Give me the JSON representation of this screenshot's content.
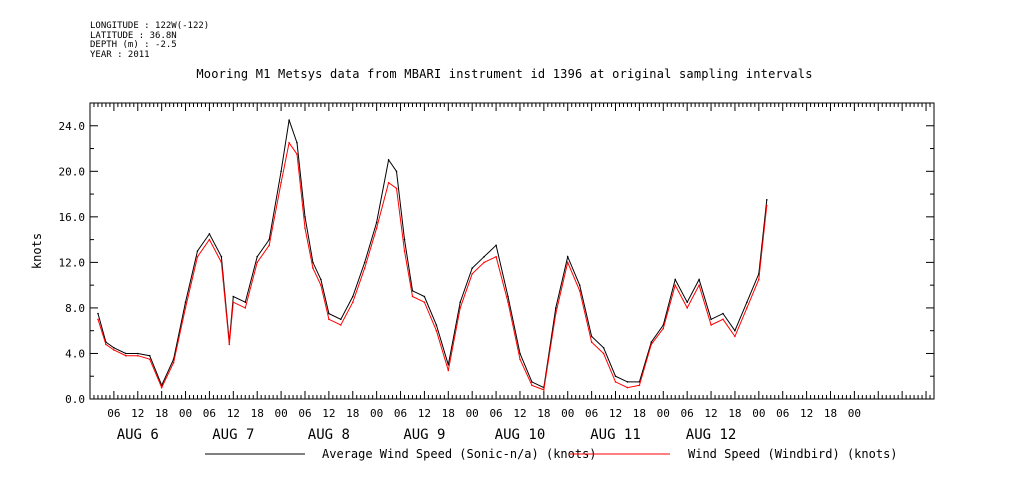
{
  "header": {
    "longitude": "LONGITUDE : 122W(-122)",
    "latitude": "LATITUDE : 36.8N",
    "depth": "DEPTH (m) : -2.5",
    "year": "YEAR : 2011"
  },
  "chart_data": {
    "type": "line",
    "title": "Mooring M1 Metsys data from MBARI instrument id 1396 at original sampling intervals",
    "xlabel": "",
    "ylabel": "knots",
    "ylim": [
      0,
      26
    ],
    "yticks": [
      0.0,
      4.0,
      8.0,
      12.0,
      16.0,
      20.0,
      24.0
    ],
    "ytick_labels": [
      "0.0",
      "4.0",
      "8.0",
      "12.0",
      "16.0",
      "20.0",
      "24.0"
    ],
    "xlim_hours": [
      0,
      212
    ],
    "x_hour_labels": [
      "06",
      "12",
      "18",
      "00",
      "06",
      "12",
      "18",
      "00",
      "06",
      "12",
      "18",
      "00",
      "06",
      "12",
      "18",
      "00",
      "06",
      "12",
      "18",
      "00",
      "06",
      "12",
      "18",
      "00",
      "06",
      "12",
      "18",
      "00",
      "06",
      "12",
      "18",
      "00"
    ],
    "x_day_labels": [
      "AUG  6",
      "AUG  7",
      "AUG  8",
      "AUG  9",
      "AUG 10",
      "AUG 11",
      "AUG 12"
    ],
    "x": [
      "2011-08-06 02:00",
      "2011-08-06 04:00",
      "2011-08-06 06:00",
      "2011-08-06 09:00",
      "2011-08-06 12:00",
      "2011-08-06 15:00",
      "2011-08-06 18:00",
      "2011-08-06 21:00",
      "2011-08-07 00:00",
      "2011-08-07 03:00",
      "2011-08-07 06:00",
      "2011-08-07 09:00",
      "2011-08-07 11:00",
      "2011-08-07 12:00",
      "2011-08-07 15:00",
      "2011-08-07 18:00",
      "2011-08-07 21:00",
      "2011-08-08 00:00",
      "2011-08-08 02:00",
      "2011-08-08 04:00",
      "2011-08-08 06:00",
      "2011-08-08 08:00",
      "2011-08-08 10:00",
      "2011-08-08 12:00",
      "2011-08-08 15:00",
      "2011-08-08 18:00",
      "2011-08-08 21:00",
      "2011-08-09 00:00",
      "2011-08-09 03:00",
      "2011-08-09 05:00",
      "2011-08-09 07:00",
      "2011-08-09 09:00",
      "2011-08-09 12:00",
      "2011-08-09 15:00",
      "2011-08-09 18:00",
      "2011-08-09 21:00",
      "2011-08-10 00:00",
      "2011-08-10 03:00",
      "2011-08-10 06:00",
      "2011-08-10 09:00",
      "2011-08-10 12:00",
      "2011-08-10 15:00",
      "2011-08-10 18:00",
      "2011-08-10 21:00",
      "2011-08-11 00:00",
      "2011-08-11 03:00",
      "2011-08-11 06:00",
      "2011-08-11 09:00",
      "2011-08-11 12:00",
      "2011-08-11 15:00",
      "2011-08-11 18:00",
      "2011-08-11 21:00",
      "2011-08-12 00:00",
      "2011-08-12 03:00",
      "2011-08-12 06:00",
      "2011-08-12 09:00",
      "2011-08-12 12:00",
      "2011-08-12 15:00",
      "2011-08-12 18:00",
      "2011-08-12 21:00",
      "2011-08-13 00:00",
      "2011-08-13 02:00"
    ],
    "series": [
      {
        "name": "Average Wind Speed (Sonic-n/a) (knots)",
        "color": "#000000",
        "values": [
          7.5,
          5.0,
          4.5,
          4.0,
          4.0,
          3.8,
          1.2,
          3.5,
          8.5,
          13.0,
          14.5,
          12.5,
          5.0,
          9.0,
          8.5,
          12.5,
          14.0,
          20.0,
          24.5,
          22.5,
          16.0,
          12.0,
          10.5,
          7.5,
          7.0,
          9.0,
          12.0,
          15.5,
          21.0,
          20.0,
          14.0,
          9.5,
          9.0,
          6.5,
          3.0,
          8.5,
          11.5,
          12.5,
          13.5,
          9.0,
          4.0,
          1.5,
          1.0,
          8.0,
          12.5,
          10.0,
          5.5,
          4.5,
          2.0,
          1.5,
          1.5,
          5.0,
          6.5,
          10.5,
          8.5,
          10.5,
          7.0,
          7.5,
          6.0,
          8.5,
          11.0,
          17.5
        ]
      },
      {
        "name": "Wind Speed (Windbird) (knots)",
        "color": "#ff0000",
        "values": [
          7.0,
          4.8,
          4.3,
          3.8,
          3.8,
          3.5,
          1.0,
          3.2,
          8.0,
          12.5,
          14.0,
          12.0,
          4.8,
          8.5,
          8.0,
          12.0,
          13.5,
          19.0,
          22.5,
          21.5,
          15.0,
          11.5,
          10.0,
          7.0,
          6.5,
          8.5,
          11.5,
          15.0,
          19.0,
          18.5,
          13.0,
          9.0,
          8.5,
          6.0,
          2.5,
          8.0,
          11.0,
          12.0,
          12.5,
          8.5,
          3.5,
          1.2,
          0.8,
          7.5,
          12.0,
          9.5,
          5.0,
          4.0,
          1.5,
          1.0,
          1.2,
          4.8,
          6.2,
          10.0,
          8.0,
          10.0,
          6.5,
          7.0,
          5.5,
          8.0,
          10.5,
          17.0
        ]
      }
    ],
    "legend": [
      {
        "label": "Average Wind Speed (Sonic-n/a) (knots)",
        "color": "#000000"
      },
      {
        "label": "Wind Speed (Windbird) (knots)",
        "color": "#ff0000"
      }
    ]
  }
}
